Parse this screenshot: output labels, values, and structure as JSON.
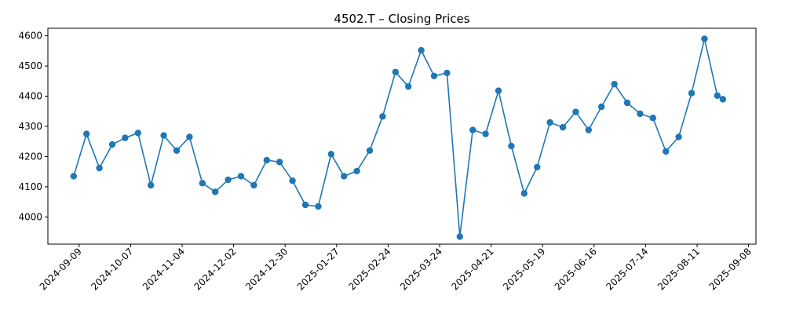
{
  "chart_data": {
    "type": "line",
    "title": "4502.T – Closing Prices",
    "xlabel": "",
    "ylabel": "",
    "x_ticks": [
      "2024-09-09",
      "2024-10-07",
      "2024-11-04",
      "2024-12-02",
      "2024-12-30",
      "2025-01-27",
      "2025-02-24",
      "2025-03-24",
      "2025-04-21",
      "2025-05-19",
      "2025-06-16",
      "2025-07-14",
      "2025-08-11",
      "2025-09-08"
    ],
    "y_ticks": [
      4000,
      4100,
      4200,
      4300,
      4400,
      4500,
      4600
    ],
    "xlim": [
      "2024-08-23",
      "2025-09-12"
    ],
    "ylim": [
      3910,
      4625
    ],
    "grid": false,
    "color": "#1f77b4",
    "series": [
      {
        "x": [
          "2024-09-06",
          "2024-09-13",
          "2024-09-20",
          "2024-09-27",
          "2024-10-04",
          "2024-10-11",
          "2024-10-18",
          "2024-10-25",
          "2024-11-01",
          "2024-11-08",
          "2024-11-15",
          "2024-11-22",
          "2024-11-29",
          "2024-12-06",
          "2024-12-13",
          "2024-12-20",
          "2024-12-27",
          "2025-01-03",
          "2025-01-10",
          "2025-01-17",
          "2025-01-24",
          "2025-01-31",
          "2025-02-07",
          "2025-02-14",
          "2025-02-21",
          "2025-02-28",
          "2025-03-07",
          "2025-03-14",
          "2025-03-21",
          "2025-03-28",
          "2025-04-04",
          "2025-04-11",
          "2025-04-18",
          "2025-04-25",
          "2025-05-02",
          "2025-05-09",
          "2025-05-16",
          "2025-05-23",
          "2025-05-30",
          "2025-06-06",
          "2025-06-13",
          "2025-06-20",
          "2025-06-27",
          "2025-07-04",
          "2025-07-11",
          "2025-07-18",
          "2025-07-25",
          "2025-08-01",
          "2025-08-08",
          "2025-08-15",
          "2025-08-22",
          "2025-08-25"
        ],
        "values": [
          4135,
          4275,
          4162,
          4240,
          4262,
          4278,
          4105,
          4270,
          4220,
          4265,
          4112,
          4083,
          4123,
          4135,
          4105,
          4188,
          4182,
          4120,
          4040,
          4035,
          4208,
          4135,
          4152,
          4220,
          4333,
          4480,
          4432,
          4552,
          4467,
          4477,
          3935,
          4288,
          4275,
          4418,
          4235,
          4078,
          4165,
          4313,
          4297,
          4348,
          4288,
          4365,
          4440,
          4378,
          4342,
          4328,
          4217,
          4265,
          4410,
          4590,
          4402,
          4390
        ]
      }
    ]
  }
}
